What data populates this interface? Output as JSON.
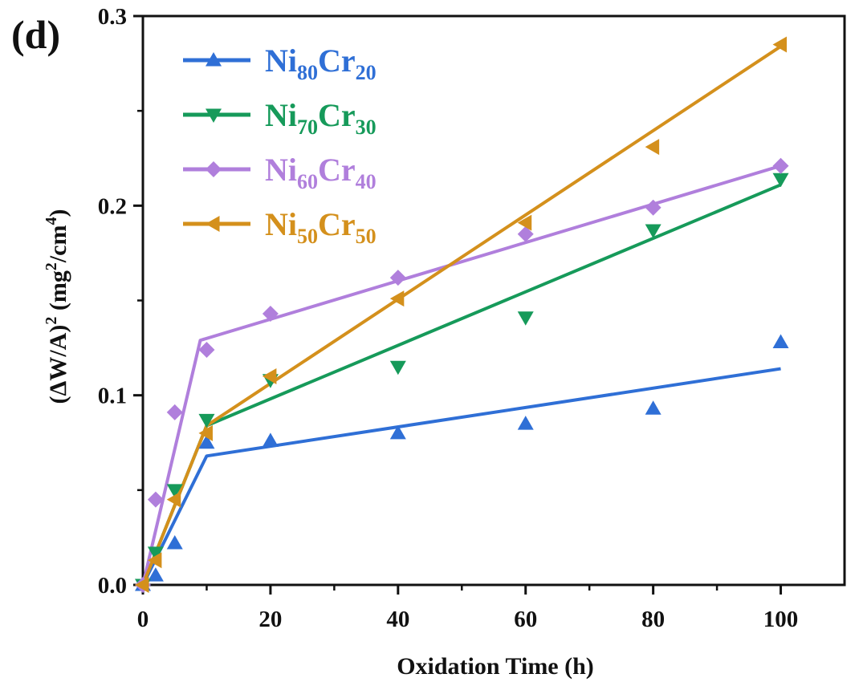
{
  "chart_data": {
    "type": "scatter",
    "panel_label": "(d)",
    "xlabel": "Oxidation Time (h)",
    "ylabel_main": "(ΔW/A)",
    "ylabel_power": "2",
    "ylabel_unit": "(mg",
    "ylabel_unit_power1": "2",
    "ylabel_unit_mid": "/cm",
    "ylabel_unit_power2": "4",
    "ylabel_unit_end": ")",
    "xlim": [
      0,
      110
    ],
    "ylim": [
      0,
      0.3
    ],
    "x_ticks": [
      0,
      20,
      40,
      60,
      80,
      100
    ],
    "x_tick_labels": [
      "0",
      "20",
      "40",
      "60",
      "80",
      "100"
    ],
    "y_ticks": [
      0,
      0.1,
      0.2,
      0.3
    ],
    "y_tick_labels": [
      "0.0",
      "0.1",
      "0.2",
      "0.3"
    ],
    "legend_position": "top-left",
    "series": [
      {
        "name": "Ni80Cr20",
        "name_parts": {
          "a": "Ni",
          "a_sub": "80",
          "b": "Cr",
          "b_sub": "20"
        },
        "color": "#2f6fd6",
        "marker": "triangle-up",
        "points": {
          "x": [
            0,
            2,
            5,
            10,
            20,
            40,
            60,
            80,
            100
          ],
          "y": [
            0.0,
            0.005,
            0.022,
            0.075,
            0.076,
            0.08,
            0.085,
            0.093,
            0.128
          ]
        },
        "fit": {
          "x": [
            0,
            10,
            100
          ],
          "y": [
            0.0,
            0.068,
            0.114
          ]
        }
      },
      {
        "name": "Ni70Cr30",
        "name_parts": {
          "a": "Ni",
          "a_sub": "70",
          "b": "Cr",
          "b_sub": "30"
        },
        "color": "#169a5a",
        "marker": "triangle-down",
        "points": {
          "x": [
            0,
            2,
            5,
            10,
            20,
            40,
            60,
            80,
            100
          ],
          "y": [
            0.0,
            0.017,
            0.05,
            0.087,
            0.108,
            0.115,
            0.141,
            0.187,
            0.214
          ]
        },
        "fit": {
          "x": [
            0,
            10,
            100
          ],
          "y": [
            0.0,
            0.084,
            0.211
          ]
        }
      },
      {
        "name": "Ni60Cr40",
        "name_parts": {
          "a": "Ni",
          "a_sub": "60",
          "b": "Cr",
          "b_sub": "40"
        },
        "color": "#b07fdc",
        "marker": "diamond",
        "points": {
          "x": [
            0,
            2,
            5,
            10,
            20,
            40,
            60,
            80,
            100
          ],
          "y": [
            0.0,
            0.045,
            0.091,
            0.124,
            0.143,
            0.162,
            0.185,
            0.199,
            0.221
          ]
        },
        "fit": {
          "x": [
            0,
            9,
            100
          ],
          "y": [
            0.0,
            0.129,
            0.221
          ]
        }
      },
      {
        "name": "Ni50Cr50",
        "name_parts": {
          "a": "Ni",
          "a_sub": "50",
          "b": "Cr",
          "b_sub": "50"
        },
        "color": "#d4901c",
        "marker": "triangle-left",
        "points": {
          "x": [
            0,
            2,
            5,
            10,
            20,
            40,
            60,
            80,
            100
          ],
          "y": [
            0.0,
            0.013,
            0.045,
            0.08,
            0.11,
            0.151,
            0.191,
            0.231,
            0.285
          ]
        },
        "fit": {
          "x": [
            0,
            10,
            100
          ],
          "y": [
            0.0,
            0.084,
            0.284
          ]
        }
      }
    ]
  }
}
